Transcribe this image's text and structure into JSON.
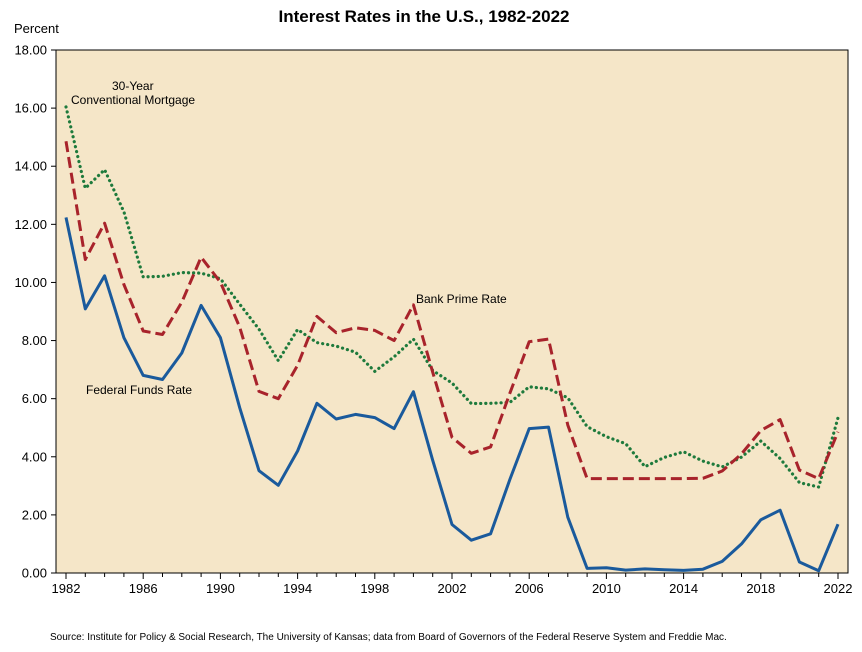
{
  "chart_data": {
    "type": "line",
    "title": "Interest Rates in the U.S., 1982-2022",
    "ylabel": "Percent",
    "xlabel": "",
    "xlim": [
      1982,
      2022
    ],
    "ylim": [
      0,
      18
    ],
    "x_ticks": [
      "1982",
      "1986",
      "1990",
      "1994",
      "1998",
      "2002",
      "2006",
      "2010",
      "2014",
      "2018",
      "2022"
    ],
    "y_ticks": [
      "0.00",
      "2.00",
      "4.00",
      "6.00",
      "8.00",
      "10.00",
      "12.00",
      "14.00",
      "16.00",
      "18.00"
    ],
    "grid": false,
    "background_color": "#f5e6c8",
    "x": [
      1982,
      1983,
      1984,
      1985,
      1986,
      1987,
      1988,
      1989,
      1990,
      1991,
      1992,
      1993,
      1994,
      1995,
      1996,
      1997,
      1998,
      1999,
      2000,
      2001,
      2002,
      2003,
      2004,
      2005,
      2006,
      2007,
      2008,
      2009,
      2010,
      2011,
      2012,
      2013,
      2014,
      2015,
      2016,
      2017,
      2018,
      2019,
      2020,
      2021,
      2022
    ],
    "series": [
      {
        "name": "30-Year Conventional Mortgage",
        "color": "#1e7a3c",
        "style": "dotted",
        "values": [
          16.04,
          13.24,
          13.88,
          12.43,
          10.19,
          10.21,
          10.34,
          10.32,
          10.13,
          9.25,
          8.39,
          7.31,
          8.38,
          7.93,
          7.81,
          7.6,
          6.94,
          7.44,
          8.05,
          6.97,
          6.54,
          5.83,
          5.84,
          5.87,
          6.41,
          6.34,
          6.03,
          5.04,
          4.69,
          4.45,
          3.66,
          3.98,
          4.17,
          3.85,
          3.65,
          3.99,
          4.54,
          3.94,
          3.11,
          2.96,
          5.34
        ]
      },
      {
        "name": "Bank Prime Rate",
        "color": "#a8232b",
        "style": "dashed",
        "values": [
          14.86,
          10.79,
          12.04,
          9.93,
          8.33,
          8.21,
          9.32,
          10.87,
          10.01,
          8.46,
          6.25,
          6.0,
          7.15,
          8.83,
          8.27,
          8.44,
          8.35,
          8.0,
          9.23,
          6.91,
          4.67,
          4.12,
          4.34,
          6.19,
          7.96,
          8.05,
          5.09,
          3.25,
          3.25,
          3.25,
          3.25,
          3.25,
          3.25,
          3.26,
          3.51,
          4.1,
          4.9,
          5.28,
          3.54,
          3.25,
          4.86
        ]
      },
      {
        "name": "Federal Funds Rate",
        "color": "#1a5a9c",
        "style": "solid",
        "values": [
          12.24,
          9.09,
          10.23,
          8.1,
          6.8,
          6.66,
          7.57,
          9.21,
          8.1,
          5.69,
          3.52,
          3.02,
          4.2,
          5.84,
          5.3,
          5.46,
          5.35,
          4.97,
          6.24,
          3.88,
          1.67,
          1.13,
          1.35,
          3.22,
          4.97,
          5.02,
          1.92,
          0.16,
          0.18,
          0.1,
          0.14,
          0.11,
          0.09,
          0.13,
          0.4,
          1.0,
          1.83,
          2.16,
          0.38,
          0.08,
          1.68
        ]
      }
    ],
    "annotations": {
      "mortgage_line1": "30-Year",
      "mortgage_line2": "Conventional Mortgage",
      "prime": "Bank Prime Rate",
      "fed": "Federal Funds Rate"
    },
    "source": "Source: Institute for Policy & Social Research, The University of Kansas; data from Board of Governors of the Federal Reserve System and Freddie Mac."
  }
}
